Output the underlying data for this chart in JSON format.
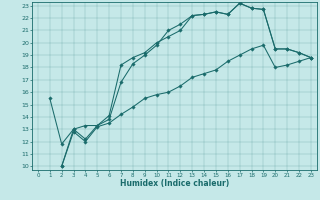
{
  "title": "",
  "xlabel": "Humidex (Indice chaleur)",
  "bg_color": "#c5e8e8",
  "line_color": "#1a6b6b",
  "xlim": [
    -0.5,
    23.5
  ],
  "ylim": [
    9.7,
    23.3
  ],
  "xticks": [
    0,
    1,
    2,
    3,
    4,
    5,
    6,
    7,
    8,
    9,
    10,
    11,
    12,
    13,
    14,
    15,
    16,
    17,
    18,
    19,
    20,
    21,
    22,
    23
  ],
  "yticks": [
    10,
    11,
    12,
    13,
    14,
    15,
    16,
    17,
    18,
    19,
    20,
    21,
    22,
    23
  ],
  "line1_x": [
    1,
    2,
    3,
    4,
    5,
    6,
    7,
    8,
    9,
    10,
    11,
    12,
    13,
    14,
    15,
    16,
    17,
    18,
    19,
    20,
    21,
    22,
    23
  ],
  "line1_y": [
    15.5,
    11.8,
    13.0,
    12.2,
    13.3,
    14.1,
    18.2,
    18.8,
    19.2,
    20.0,
    20.5,
    21.0,
    22.2,
    22.3,
    22.5,
    22.3,
    23.2,
    22.8,
    22.7,
    19.5,
    19.5,
    19.2,
    18.8
  ],
  "line2_x": [
    2,
    3,
    4,
    5,
    6,
    7,
    8,
    9,
    10,
    11,
    12,
    13,
    14,
    15,
    16,
    17,
    18,
    19,
    20,
    21,
    22,
    23
  ],
  "line2_y": [
    10.0,
    13.0,
    13.3,
    13.3,
    13.8,
    16.8,
    18.3,
    19.0,
    19.8,
    21.0,
    21.5,
    22.2,
    22.3,
    22.5,
    22.3,
    23.2,
    22.8,
    22.7,
    19.5,
    19.5,
    19.2,
    18.8
  ],
  "line3_x": [
    2,
    3,
    4,
    5,
    6,
    7,
    8,
    9,
    10,
    11,
    12,
    13,
    14,
    15,
    16,
    17,
    18,
    19,
    20,
    21,
    22,
    23
  ],
  "line3_y": [
    10.0,
    12.8,
    12.0,
    13.2,
    13.5,
    14.2,
    14.8,
    15.5,
    15.8,
    16.0,
    16.5,
    17.2,
    17.5,
    17.8,
    18.5,
    19.0,
    19.5,
    19.8,
    18.0,
    18.2,
    18.5,
    18.8
  ]
}
